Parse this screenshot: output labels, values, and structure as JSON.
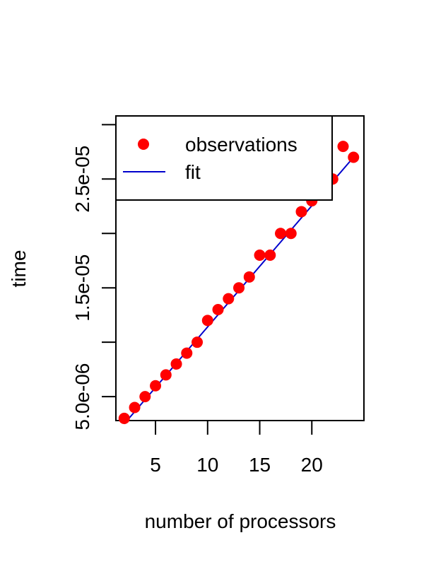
{
  "chart_data": {
    "type": "scatter",
    "title": "",
    "xlabel": "number of processors",
    "ylabel": "time",
    "xlim": [
      1.2,
      25
    ],
    "ylim": [
      2.8e-06,
      3.08e-05
    ],
    "x_ticks": [
      5,
      10,
      15,
      20
    ],
    "x_tick_labels": [
      "5",
      "10",
      "15",
      "20"
    ],
    "y_ticks": [
      5e-06,
      1e-05,
      1.5e-05,
      2e-05,
      2.5e-05,
      3e-05
    ],
    "y_tick_labels": [
      "5.0e-06",
      "",
      "1.5e-05",
      "",
      "2.5e-05",
      ""
    ],
    "grid": false,
    "legend_position": "top-left",
    "series": [
      {
        "name": "observations",
        "kind": "points",
        "color": "#ff0000",
        "x": [
          2,
          3,
          4,
          5,
          6,
          7,
          8,
          9,
          10,
          11,
          12,
          13,
          14,
          15,
          16,
          17,
          18,
          19,
          20,
          21,
          22,
          23,
          24
        ],
        "y": [
          3e-06,
          4e-06,
          5e-06,
          6e-06,
          7e-06,
          8e-06,
          9e-06,
          1e-05,
          1.2e-05,
          1.3e-05,
          1.4e-05,
          1.5e-05,
          1.6e-05,
          1.8e-05,
          1.8e-05,
          2e-05,
          2e-05,
          2.2e-05,
          2.3e-05,
          2.4e-05,
          2.5e-05,
          2.8e-05,
          2.7e-05
        ]
      },
      {
        "name": "fit",
        "kind": "line",
        "color": "#0000cc",
        "x": [
          2,
          24
        ],
        "y": [
          2.5e-06,
          2.7e-05
        ]
      }
    ]
  }
}
